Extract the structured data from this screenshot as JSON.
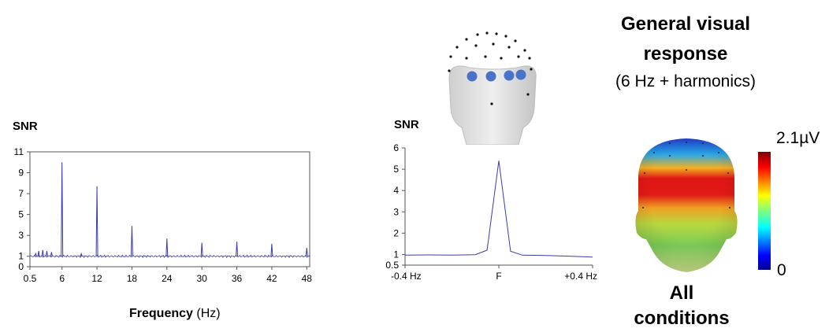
{
  "header": {
    "title_line1": "General visual",
    "title_line2": "response",
    "subtitle": "(6 Hz + harmonics)"
  },
  "topomap": {
    "label_line1": "All",
    "label_line2": "conditions",
    "colorbar_max": "2.1µV",
    "colorbar_min": "0"
  },
  "chart_data": [
    {
      "type": "line",
      "ylabel": "SNR",
      "xlabel": "Frequency",
      "xlabel_unit": "(Hz)",
      "xlim": [
        0.5,
        48.5
      ],
      "ylim": [
        0,
        11
      ],
      "yticks": [
        0,
        1,
        3,
        5,
        7,
        9,
        11
      ],
      "xticks": [
        0.5,
        6,
        12,
        18,
        24,
        30,
        36,
        42,
        48
      ],
      "xticklabels": [
        "0.5",
        "6",
        "12",
        "18",
        "24",
        "30",
        "36",
        "42",
        "48"
      ],
      "baseline": 1,
      "color": "#3b3bb0",
      "peaks": [
        {
          "x": 1.5,
          "y": 1.3
        },
        {
          "x": 2.0,
          "y": 1.5
        },
        {
          "x": 2.7,
          "y": 1.6
        },
        {
          "x": 3.4,
          "y": 1.5
        },
        {
          "x": 4.2,
          "y": 1.4
        },
        {
          "x": 6,
          "y": 10.0
        },
        {
          "x": 9.3,
          "y": 1.25
        },
        {
          "x": 12,
          "y": 7.7
        },
        {
          "x": 18,
          "y": 3.9
        },
        {
          "x": 24,
          "y": 2.7
        },
        {
          "x": 30,
          "y": 2.3
        },
        {
          "x": 36,
          "y": 2.4
        },
        {
          "x": 42,
          "y": 2.2
        },
        {
          "x": 48,
          "y": 1.8
        }
      ]
    },
    {
      "type": "line",
      "ylabel": "SNR",
      "xlim": [
        -0.4,
        0.4
      ],
      "ylim": [
        0.5,
        6
      ],
      "yticks": [
        0.5,
        1,
        2,
        3,
        4,
        5,
        6
      ],
      "xticks": [
        -0.4,
        0,
        0.4
      ],
      "xticklabels": [
        "-0.4 Hz",
        "F",
        "+0.4 Hz"
      ],
      "color": "#3b3bb0",
      "x": [
        -0.4,
        -0.3,
        -0.2,
        -0.1,
        -0.05,
        0,
        0.05,
        0.1,
        0.2,
        0.3,
        0.4
      ],
      "y": [
        0.97,
        0.98,
        0.97,
        0.99,
        1.2,
        5.4,
        1.15,
        0.97,
        0.95,
        0.92,
        0.88
      ]
    }
  ]
}
